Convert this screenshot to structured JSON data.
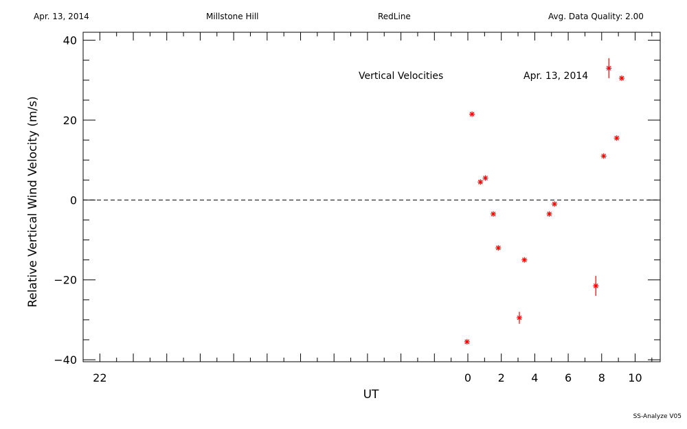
{
  "header": {
    "date": "Apr. 13, 2014",
    "site": "Millstone Hill",
    "filter": "RedLine",
    "quality": "Avg. Data Quality: 2.00"
  },
  "footer": {
    "version": "SS-Analyze V05"
  },
  "chart_data": {
    "type": "scatter",
    "title": "Vertical Velocities",
    "annotation": "Apr. 13, 2014",
    "xlabel": "UT",
    "ylabel": "Relative Vertical Wind Velocity (m/s)",
    "xlim": [
      -23.0,
      11.5
    ],
    "ylim": [
      -40.5,
      42
    ],
    "xticks": [
      -22,
      0,
      2,
      4,
      6,
      8,
      10
    ],
    "xtick_labels": [
      "22",
      "0",
      "2",
      "4",
      "6",
      "8",
      "10"
    ],
    "yticks": [
      -40,
      -20,
      0,
      20,
      40
    ],
    "ytick_labels": [
      "−40",
      "−20",
      "0",
      "20",
      "40"
    ],
    "zero_line": true,
    "grid": false,
    "marker": "asterisk",
    "color": "#ff0000",
    "series": [
      {
        "x": [
          -0.05,
          0.25,
          0.75,
          1.05,
          1.52,
          1.82,
          3.08,
          3.38,
          4.87,
          5.18,
          7.65,
          8.12,
          8.43,
          8.9,
          9.2
        ],
        "y": [
          -35.5,
          21.5,
          4.5,
          5.5,
          -3.5,
          -12.0,
          -29.5,
          -15.0,
          -3.5,
          -1.0,
          -21.5,
          11.0,
          33.0,
          15.5,
          30.5
        ],
        "err": [
          0,
          0,
          0,
          0,
          0,
          0,
          1.5,
          0,
          0,
          0,
          2.5,
          0,
          2.5,
          0,
          0
        ]
      }
    ]
  }
}
